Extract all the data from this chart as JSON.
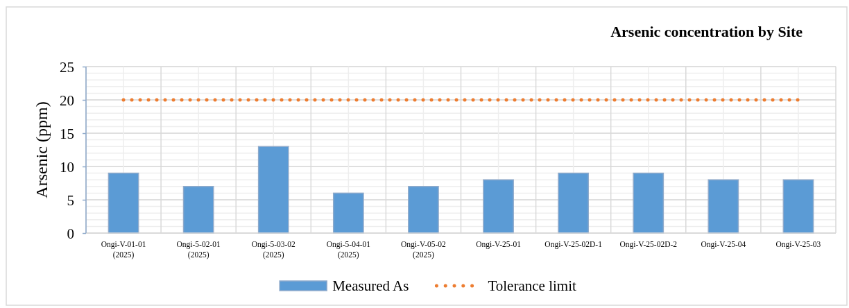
{
  "chart_data": {
    "type": "bar",
    "title": "Arsenic concentration by Site",
    "ylabel": "Arsenic (ppm)",
    "categories": [
      "Ongi-V-01-01\n(2025)",
      "Ongi-5-02-01\n(2025)",
      "Ongi-5-03-02\n(2025)",
      "Ongi-5-04-01\n(2025)",
      "Ongi-V-05-02\n(2025)",
      "Ongi-V-25-01",
      "Ongi-V-25-02D-1",
      "Ongi-V-25-02D-2",
      "Ongi-V-25-04",
      "Ongi-V-25-03"
    ],
    "series": [
      {
        "name": "Measured As",
        "color": "#5b9bd5",
        "values": [
          9,
          7,
          13,
          6,
          7,
          8,
          9,
          9,
          8,
          8
        ]
      },
      {
        "name": "Tolerance limit",
        "type": "line",
        "color": "#ed7d31",
        "line_style": "dotted",
        "values": [
          20,
          20,
          20,
          20,
          20,
          20,
          20,
          20,
          20,
          20
        ]
      }
    ],
    "ylim": [
      0,
      25
    ],
    "yticks": [
      0,
      5,
      10,
      15,
      20,
      25
    ],
    "grid": true,
    "legend": "bottom"
  }
}
